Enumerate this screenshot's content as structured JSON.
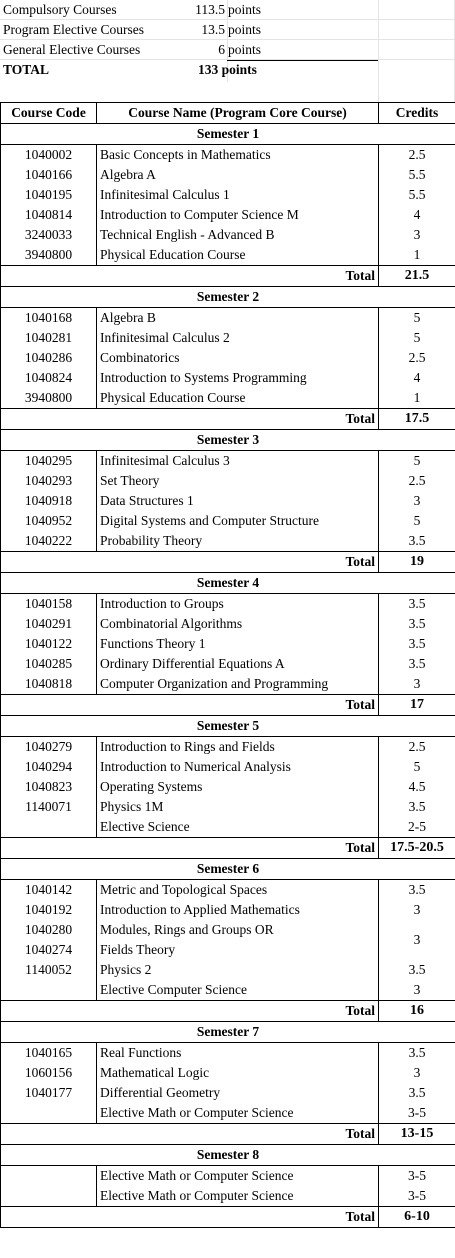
{
  "summary": {
    "rows": [
      {
        "label": "Compulsory Courses",
        "value": "113.5",
        "unit": "points"
      },
      {
        "label": "Program Elective Courses",
        "value": "13.5",
        "unit": "points"
      },
      {
        "label": "General Elective Courses",
        "value": "6",
        "unit": "points"
      }
    ],
    "total": {
      "label": "TOTAL",
      "value": "133 points"
    }
  },
  "table": {
    "headers": [
      "Course Code",
      "Course Name (Program Core Course)",
      "Credits"
    ],
    "total_label": "Total",
    "semesters": [
      {
        "title": "Semester 1",
        "total": "21.5",
        "courses": [
          {
            "code": "1040002",
            "name": "Basic Concepts in Mathematics",
            "credits": "2.5"
          },
          {
            "code": "1040166",
            "name": "Algebra A",
            "credits": "5.5"
          },
          {
            "code": "1040195",
            "name": "Infinitesimal Calculus 1",
            "credits": "5.5"
          },
          {
            "code": "1040814",
            "name": "Introduction to Computer Science M",
            "credits": "4"
          },
          {
            "code": "3240033",
            "name": "Technical English - Advanced B",
            "credits": "3"
          },
          {
            "code": "3940800",
            "name": "Physical Education Course",
            "credits": "1"
          }
        ]
      },
      {
        "title": "Semester 2",
        "total": "17.5",
        "courses": [
          {
            "code": "1040168",
            "name": "Algebra B",
            "credits": "5"
          },
          {
            "code": "1040281",
            "name": "Infinitesimal Calculus 2",
            "credits": "5"
          },
          {
            "code": "1040286",
            "name": "Combinatorics",
            "credits": "2.5"
          },
          {
            "code": "1040824",
            "name": "Introduction to Systems Programming",
            "credits": "4"
          },
          {
            "code": "3940800",
            "name": "Physical Education Course",
            "credits": "1"
          }
        ]
      },
      {
        "title": "Semester 3",
        "total": "19",
        "courses": [
          {
            "code": "1040295",
            "name": "Infinitesimal Calculus 3",
            "credits": "5"
          },
          {
            "code": "1040293",
            "name": "Set Theory",
            "credits": "2.5"
          },
          {
            "code": "1040918",
            "name": "Data Structures 1",
            "credits": "3"
          },
          {
            "code": "1040952",
            "name": "Digital Systems and Computer Structure",
            "credits": "5"
          },
          {
            "code": "1040222",
            "name": "Probability Theory",
            "credits": "3.5"
          }
        ]
      },
      {
        "title": "Semester 4",
        "total": "17",
        "courses": [
          {
            "code": "1040158",
            "name": "Introduction to Groups",
            "credits": "3.5"
          },
          {
            "code": "1040291",
            "name": "Combinatorial Algorithms",
            "credits": "3.5"
          },
          {
            "code": "1040122",
            "name": "Functions Theory 1",
            "credits": "3.5"
          },
          {
            "code": "1040285",
            "name": "Ordinary Differential Equations A",
            "credits": "3.5"
          },
          {
            "code": "1040818",
            "name": "Computer Organization and Programming",
            "credits": "3"
          }
        ]
      },
      {
        "title": "Semester 5",
        "total": "17.5-20.5",
        "courses": [
          {
            "code": "1040279",
            "name": "Introduction to Rings and Fields",
            "credits": "2.5"
          },
          {
            "code": "1040294",
            "name": "Introduction to Numerical Analysis",
            "credits": "5"
          },
          {
            "code": "1040823",
            "name": "Operating Systems",
            "credits": "4.5"
          },
          {
            "code": "1140071",
            "name": "Physics 1M",
            "credits": "3.5"
          },
          {
            "name": "Elective Science",
            "credits": "2-5"
          }
        ]
      },
      {
        "title": "Semester 6",
        "total": "16",
        "courses": [
          {
            "code": "1040142",
            "name": "Metric and Topological Spaces",
            "credits": "3.5"
          },
          {
            "code": "1040192",
            "name": "Introduction to Applied Mathematics",
            "credits": "3"
          },
          {
            "code": [
              "1040280",
              "1040274"
            ],
            "name": [
              "Modules, Rings and Groups OR",
              "Fields Theory"
            ],
            "credits": "3"
          },
          {
            "code": "1140052",
            "name": "Physics 2",
            "credits": "3.5"
          },
          {
            "name": "Elective Computer Science",
            "credits": "3"
          }
        ]
      },
      {
        "title": "Semester 7",
        "total": "13-15",
        "courses": [
          {
            "code": "1040165",
            "name": "Real Functions",
            "credits": "3.5"
          },
          {
            "code": "1060156",
            "name": "Mathematical Logic",
            "credits": "3"
          },
          {
            "code": "1040177",
            "name": "Differential Geometry",
            "credits": "3.5"
          },
          {
            "name": "Elective Math or Computer Science",
            "credits": "3-5"
          }
        ]
      },
      {
        "title": "Semester 8",
        "total": "6-10",
        "courses": [
          {
            "name": "Elective Math or Computer Science",
            "credits": "3-5"
          },
          {
            "name": "Elective Math or Computer Science",
            "credits": "3-5"
          }
        ]
      }
    ]
  }
}
